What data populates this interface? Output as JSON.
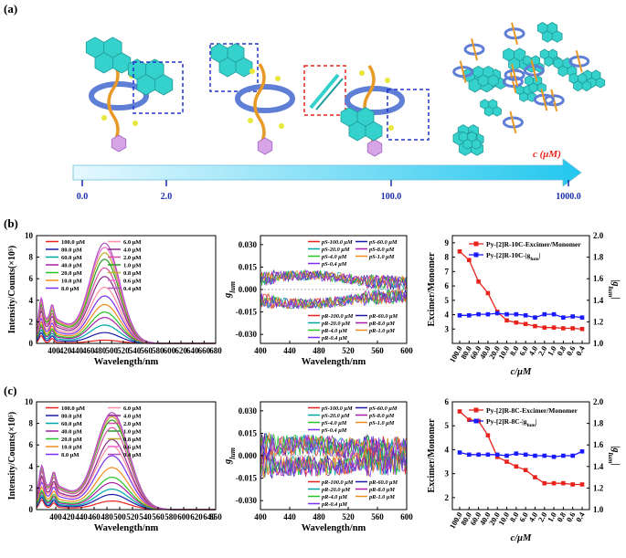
{
  "panels": {
    "a": {
      "label": "(a)",
      "axis_label": "c (μM)",
      "ticks": [
        "0.0",
        "2.0",
        "100.0",
        "1000.0"
      ],
      "tick_values": [
        0,
        2,
        100,
        1000
      ],
      "colors": {
        "arrow_start": "#e6f8ff",
        "arrow_end": "#22c7ee",
        "tick": "#1b2fa8",
        "axis_label": "#e8231b",
        "box_blue": "#2233cc",
        "box_red": "#e8231b",
        "pyrene": "#35d1cc",
        "rotaxane": "#5f7fd6",
        "chain": "#e89a28"
      }
    },
    "b": {
      "label": "(b)"
    },
    "c": {
      "label": "(c)"
    }
  },
  "chart_data": [
    {
      "id": "b1",
      "type": "line",
      "xlabel": "Wavelength/nm",
      "ylabel": "Intensity/Counts(×10⁵)",
      "xlim": [
        370,
        680
      ],
      "ylim": [
        0,
        10
      ],
      "xticks": [
        "400",
        "420",
        "440",
        "460",
        "480",
        "500",
        "520",
        "540",
        "560",
        "580",
        "600",
        "620",
        "640",
        "660",
        "680"
      ],
      "yticks": [
        "0",
        "2",
        "4",
        "6",
        "8",
        "10"
      ],
      "legend_position": "top-left",
      "series": [
        {
          "name": "100.0 μM",
          "color": "#e8231b",
          "peak": 0.3
        },
        {
          "name": "80.0 μM",
          "color": "#1a1aa6",
          "peak": 1.0
        },
        {
          "name": "60.0 μM",
          "color": "#00a6a6",
          "peak": 1.7
        },
        {
          "name": "40.0 μM",
          "color": "#a81fa8",
          "peak": 2.4
        },
        {
          "name": "20.0 μM",
          "color": "#27c427",
          "peak": 2.9
        },
        {
          "name": "10.0 μM",
          "color": "#f08c1e",
          "peak": 3.6
        },
        {
          "name": "8.0 μM",
          "color": "#7b2ff0",
          "peak": 4.4
        },
        {
          "name": "6.0 μM",
          "color": "#ff8fa3",
          "peak": 5.2
        },
        {
          "name": "4.0 μM",
          "color": "#8b2b8b",
          "peak": 6.2
        },
        {
          "name": "2.0 μM",
          "color": "#d94fa5",
          "peak": 7.0
        },
        {
          "name": "1.0 μM",
          "color": "#2a9d2a",
          "peak": 7.8
        },
        {
          "name": "0.8 μM",
          "color": "#bfae2e",
          "peak": 8.4
        },
        {
          "name": "0.6 μM",
          "color": "#ec6fd0",
          "peak": 8.9
        },
        {
          "name": "0.4 μM",
          "color": "#b24ec4",
          "peak": 9.3
        }
      ]
    },
    {
      "id": "b2",
      "type": "line",
      "xlabel": "Wavelength/nm",
      "ylabel": "g_lum",
      "xlim": [
        400,
        600
      ],
      "ylim": [
        -0.036,
        0.036
      ],
      "xticks": [
        "400",
        "440",
        "480",
        "520",
        "560",
        "600"
      ],
      "yticks": [
        "0.030",
        "0.015",
        "0.000",
        "-0.015",
        "-0.030"
      ],
      "legend_top": [
        "pS-100.0 μM",
        "pS-60.0 μM",
        "pS-20.0 μM",
        "pS-8.0 μM",
        "pS-4.0 μM",
        "pS-1.0 μM",
        "pS-0.4 μM"
      ],
      "legend_bottom": [
        "pR-100.0 μM",
        "pR-60.0 μM",
        "pR-20.0 μM",
        "pR-8.0 μM",
        "pR-4.0 μM",
        "pR-1.0 μM",
        "pR-0.4 μM"
      ],
      "series_colors": [
        "#e8231b",
        "#1a1aa6",
        "#00a6a6",
        "#a81fa8",
        "#27c427",
        "#f08c1e",
        "#7b2ff0"
      ],
      "pS_level": 0.008,
      "pR_level": -0.008
    },
    {
      "id": "b3",
      "type": "line",
      "xlabel": "c/μM",
      "ylabel": "Excimer/Monomer",
      "y2label": "|g_lum|",
      "categories": [
        "100.0",
        "80.0",
        "60.0",
        "40.0",
        "20.0",
        "10.0",
        "8.0",
        "6.0",
        "4.0",
        "2.0",
        "1.0",
        "0.8",
        "0.6",
        "0.4"
      ],
      "ylim": [
        2,
        9.5
      ],
      "yticks": [
        "3",
        "4",
        "5",
        "6",
        "7",
        "8",
        "9"
      ],
      "y2lim": [
        1.0,
        2.0
      ],
      "y2ticks": [
        "1.0",
        "1.2",
        "1.4",
        "1.6",
        "1.8",
        "2.0"
      ],
      "legend_position": "top-right",
      "series": [
        {
          "name": "Py-[2]R-10C-Excimer/Monomer",
          "color": "#e8231b",
          "axis": "left",
          "values": [
            8.4,
            7.8,
            6.3,
            5.5,
            4.2,
            3.6,
            3.45,
            3.35,
            3.2,
            3.1,
            3.1,
            3.05,
            3.05,
            3.0
          ]
        },
        {
          "name": "Py-[2]R-10C-|g_lum|",
          "color": "#1a1aff",
          "axis": "right",
          "values": [
            1.26,
            1.26,
            1.27,
            1.27,
            1.28,
            1.27,
            1.27,
            1.26,
            1.24,
            1.27,
            1.27,
            1.24,
            1.25,
            1.24
          ]
        }
      ]
    },
    {
      "id": "c1",
      "type": "line",
      "xlabel": "Wavelength/nm",
      "ylabel": "Intensity/Counts(×10⁵)",
      "xlim": [
        370,
        650
      ],
      "ylim": [
        0,
        10
      ],
      "xticks": [
        "400",
        "420",
        "440",
        "460",
        "480",
        "500",
        "520",
        "540",
        "560",
        "580",
        "600",
        "620",
        "640",
        "650"
      ],
      "yticks": [
        "0",
        "2",
        "4",
        "6",
        "8",
        "10"
      ],
      "legend_position": "top-left",
      "series": [
        {
          "name": "100.0 μM",
          "color": "#e8231b",
          "peak": 0.8
        },
        {
          "name": "80.0 μM",
          "color": "#1a1aa6",
          "peak": 1.4
        },
        {
          "name": "60.0 μM",
          "color": "#00a6a6",
          "peak": 1.9
        },
        {
          "name": "40.0 μM",
          "color": "#a81fa8",
          "peak": 2.5
        },
        {
          "name": "20.0 μM",
          "color": "#27c427",
          "peak": 3.0
        },
        {
          "name": "10.0 μM",
          "color": "#f08c1e",
          "peak": 3.9
        },
        {
          "name": "8.0 μM",
          "color": "#7b2ff0",
          "peak": 5.0
        },
        {
          "name": "6.0 μM",
          "color": "#ff8fa3",
          "peak": 5.9
        },
        {
          "name": "4.0 μM",
          "color": "#8b2b8b",
          "peak": 6.5
        },
        {
          "name": "2.0 μM",
          "color": "#d94fa5",
          "peak": 7.6
        },
        {
          "name": "1.0 μM",
          "color": "#2a9d2a",
          "peak": 8.3
        },
        {
          "name": "0.8 μM",
          "color": "#bfae2e",
          "peak": 8.6
        },
        {
          "name": "0.6 μM",
          "color": "#ec6fd0",
          "peak": 8.8
        },
        {
          "name": "0.4 μM",
          "color": "#b24ec4",
          "peak": 9.0
        }
      ]
    },
    {
      "id": "c2",
      "type": "line",
      "xlabel": "Wavelength/nm",
      "ylabel": "g_lum",
      "xlim": [
        400,
        600
      ],
      "ylim": [
        -0.036,
        0.036
      ],
      "xticks": [
        "400",
        "440",
        "480",
        "520",
        "560",
        "600"
      ],
      "yticks": [
        "0.030",
        "0.015",
        "0.000",
        "-0.015",
        "-0.030"
      ],
      "legend_top": [
        "pS-100.0 μM",
        "pS-60.0 μM",
        "pS-20.0 μM",
        "pS-8.0 μM",
        "pS-4.0 μM",
        "pS-1.0 μM",
        "pS-0.4 μM"
      ],
      "legend_bottom": [
        "pR-100.0 μM",
        "pR-60.0 μM",
        "pR-20.0 μM",
        "pR-8.0 μM",
        "pR-4.0 μM",
        "pR-1.0 μM",
        "pR-0.4 μM"
      ],
      "series_colors": [
        "#e8231b",
        "#1a1aa6",
        "#00a6a6",
        "#a81fa8",
        "#27c427",
        "#f08c1e",
        "#7b2ff0"
      ],
      "pS_level": 0.006,
      "pR_level": -0.006
    },
    {
      "id": "c3",
      "type": "line",
      "xlabel": "c/μM",
      "ylabel": "Excimer/Monomer",
      "y2label": "|g_lum|",
      "categories": [
        "100.0",
        "80.0",
        "60.0",
        "40.0",
        "20.0",
        "10.0",
        "8.0",
        "6.0",
        "4.0",
        "2.0",
        "1.0",
        "0.8",
        "0.6",
        "0.4"
      ],
      "ylim": [
        1.5,
        6.0
      ],
      "yticks": [
        "2",
        "3",
        "4",
        "5",
        "6"
      ],
      "y2lim": [
        1.0,
        2.0
      ],
      "y2ticks": [
        "1.0",
        "1.2",
        "1.4",
        "1.6",
        "1.8",
        "2.0"
      ],
      "legend_position": "top-right",
      "series": [
        {
          "name": "Py-[2]R-8C-Excimer/Monomer",
          "color": "#e8231b",
          "axis": "left",
          "values": [
            5.6,
            5.25,
            5.2,
            4.6,
            3.7,
            3.5,
            3.3,
            3.15,
            2.85,
            2.6,
            2.6,
            2.6,
            2.55,
            2.55
          ]
        },
        {
          "name": "Py-[2]R-8C-|g_lum|",
          "color": "#1a1aff",
          "axis": "right",
          "values": [
            1.53,
            1.51,
            1.51,
            1.51,
            1.51,
            1.5,
            1.52,
            1.51,
            1.5,
            1.5,
            1.49,
            1.5,
            1.5,
            1.54
          ]
        }
      ]
    }
  ]
}
